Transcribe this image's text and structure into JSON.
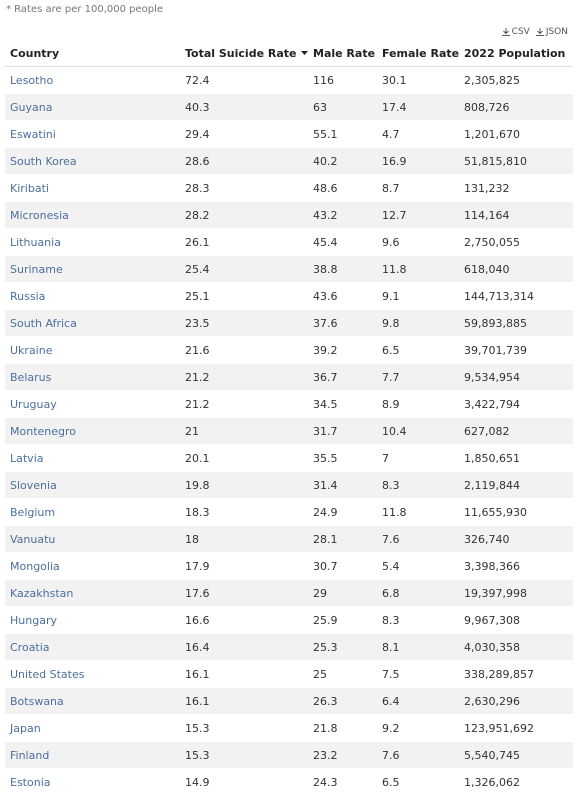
{
  "note": "* Rates are per 100,000 people",
  "downloads": [
    "CSV",
    "JSON"
  ],
  "table": {
    "header": [
      "Country",
      "Total Suicide Rate",
      "Male Rate",
      "Female Rate",
      "2022 Population"
    ],
    "rows": [
      [
        "Lesotho",
        72.4,
        116,
        30.1,
        "2,305,825"
      ],
      [
        "Guyana",
        40.3,
        63,
        17.4,
        "808,726"
      ],
      [
        "Eswatini",
        29.4,
        55.1,
        4.7,
        "1,201,670"
      ],
      [
        "South Korea",
        28.6,
        40.2,
        16.9,
        "51,815,810"
      ],
      [
        "Kiribati",
        28.3,
        48.6,
        8.7,
        "131,232"
      ],
      [
        "Micronesia",
        28.2,
        43.2,
        12.7,
        "114,164"
      ],
      [
        "Lithuania",
        26.1,
        45.4,
        9.6,
        "2,750,055"
      ],
      [
        "Suriname",
        25.4,
        38.8,
        11.8,
        "618,040"
      ],
      [
        "Russia",
        25.1,
        43.6,
        9.1,
        "144,713,314"
      ],
      [
        "South Africa",
        23.5,
        37.6,
        9.8,
        "59,893,885"
      ],
      [
        "Ukraine",
        21.6,
        39.2,
        6.5,
        "39,701,739"
      ],
      [
        "Belarus",
        21.2,
        36.7,
        7.7,
        "9,534,954"
      ],
      [
        "Uruguay",
        21.2,
        34.5,
        8.9,
        "3,422,794"
      ],
      [
        "Montenegro",
        21,
        31.7,
        10.4,
        "627,082"
      ],
      [
        "Latvia",
        20.1,
        35.5,
        7,
        "1,850,651"
      ],
      [
        "Slovenia",
        19.8,
        31.4,
        8.3,
        "2,119,844"
      ],
      [
        "Belgium",
        18.3,
        24.9,
        11.8,
        "11,655,930"
      ],
      [
        "Vanuatu",
        18,
        28.1,
        7.6,
        "326,740"
      ],
      [
        "Mongolia",
        17.9,
        30.7,
        5.4,
        "3,398,366"
      ],
      [
        "Kazakhstan",
        17.6,
        29,
        6.8,
        "19,397,998"
      ],
      [
        "Hungary",
        16.6,
        25.9,
        8.3,
        "9,967,308"
      ],
      [
        "Croatia",
        16.4,
        25.3,
        8.1,
        "4,030,358"
      ],
      [
        "United States",
        16.1,
        25,
        7.5,
        "338,289,857"
      ],
      [
        "Botswana",
        16.1,
        26.3,
        6.4,
        "2,630,296"
      ],
      [
        "Japan",
        15.3,
        21.8,
        9.2,
        "123,951,692"
      ],
      [
        "Finland",
        15.3,
        23.2,
        7.6,
        "5,540,745"
      ],
      [
        "Estonia",
        14.9,
        24.3,
        6.5,
        "1,326,062"
      ]
    ]
  }
}
